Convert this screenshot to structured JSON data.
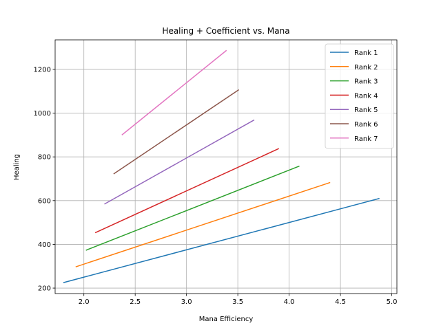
{
  "chart_data": {
    "type": "line",
    "title": "Healing + Coefficient vs. Mana",
    "xlabel": "Mana Efficiency",
    "ylabel": "Healing",
    "xlim": [
      1.72,
      5.05
    ],
    "ylim": [
      175,
      1335
    ],
    "xticks": [
      2.0,
      2.5,
      3.0,
      3.5,
      4.0,
      4.5,
      5.0
    ],
    "xtick_labels": [
      "2.0",
      "2.5",
      "3.0",
      "3.5",
      "4.0",
      "4.5",
      "5.0"
    ],
    "yticks": [
      200,
      400,
      600,
      800,
      1000,
      1200
    ],
    "ytick_labels": [
      "200",
      "400",
      "600",
      "800",
      "1000",
      "1200"
    ],
    "grid": true,
    "legend_position": "top-right",
    "series": [
      {
        "name": "Rank 1",
        "color": "#1f77b4",
        "x": [
          1.8,
          4.88
        ],
        "y": [
          225,
          610
        ]
      },
      {
        "name": "Rank 2",
        "color": "#ff7f0e",
        "x": [
          1.92,
          4.4
        ],
        "y": [
          297,
          683
        ]
      },
      {
        "name": "Rank 3",
        "color": "#2ca02c",
        "x": [
          2.02,
          4.1
        ],
        "y": [
          373,
          758
        ]
      },
      {
        "name": "Rank 4",
        "color": "#d62728",
        "x": [
          2.11,
          3.9
        ],
        "y": [
          453,
          838
        ]
      },
      {
        "name": "Rank 5",
        "color": "#9467bd",
        "x": [
          2.2,
          3.66
        ],
        "y": [
          584,
          969
        ]
      },
      {
        "name": "Rank 6",
        "color": "#8c564b",
        "x": [
          2.29,
          3.51
        ],
        "y": [
          722,
          1107
        ]
      },
      {
        "name": "Rank 7",
        "color": "#e377c2",
        "x": [
          2.37,
          3.39
        ],
        "y": [
          900,
          1287
        ]
      }
    ]
  }
}
